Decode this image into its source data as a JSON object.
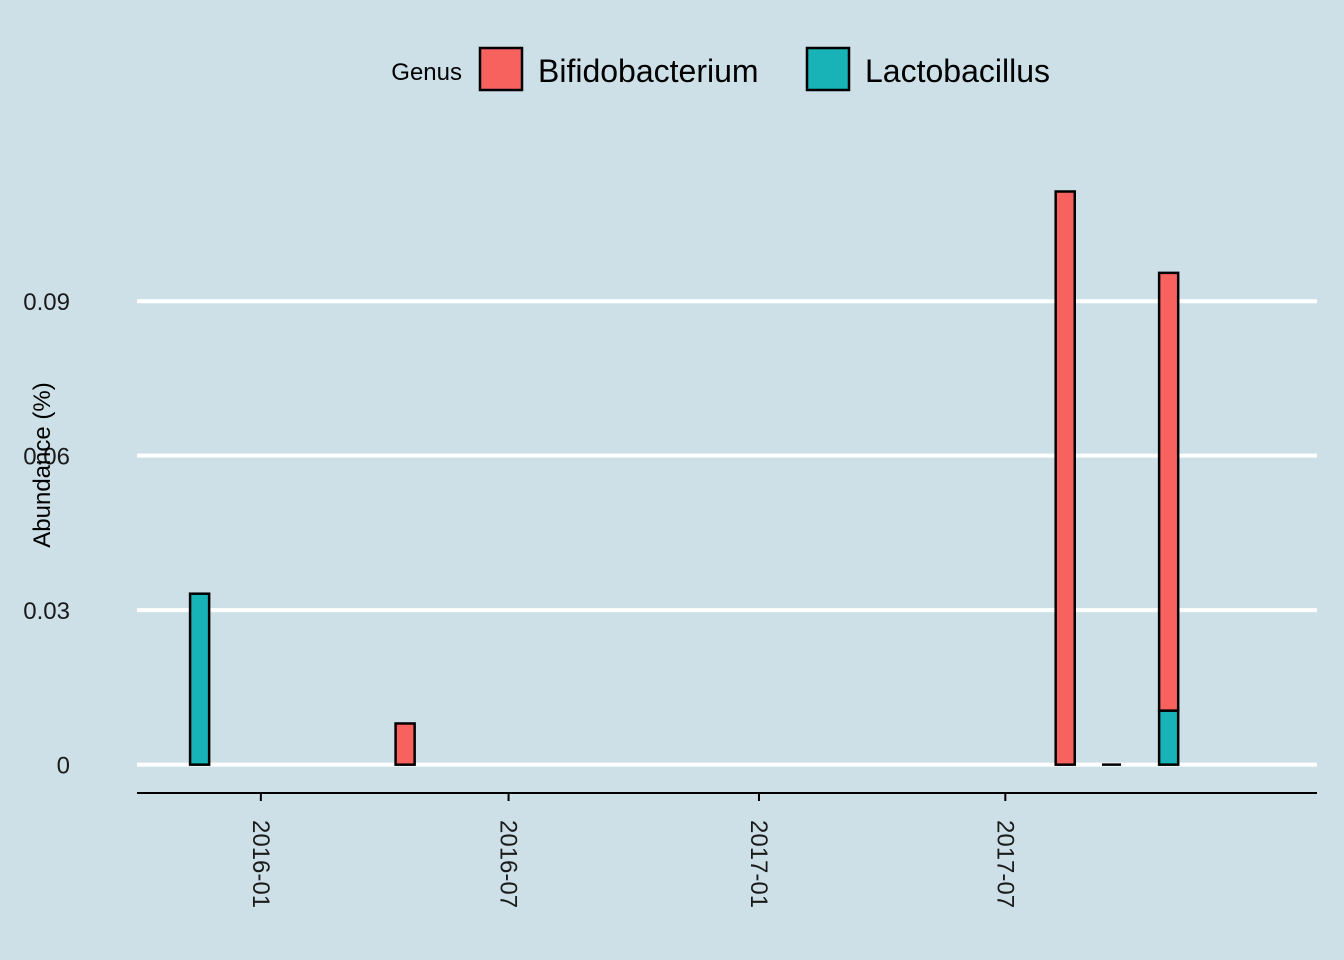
{
  "chart_data": {
    "type": "bar",
    "stacked": true,
    "title": "",
    "xlabel": "",
    "ylabel": "Abundance (%)",
    "legend": {
      "title": "Genus",
      "position": "top"
    },
    "grid": {
      "horizontal_major": true,
      "vertical": false
    },
    "ylim": [
      -0.0055,
      0.1213
    ],
    "yticks": [
      0,
      0.03,
      0.06,
      0.09
    ],
    "ytick_labels": [
      "0",
      "0.03",
      "0.06",
      "0.09"
    ],
    "xlim": [
      "2015-10-02",
      "2018-02-15"
    ],
    "xticks": [
      "2016-01-01",
      "2016-07-01",
      "2017-01-01",
      "2017-07-01"
    ],
    "xtick_labels": [
      "2016-01",
      "2016-07",
      "2017-01",
      "2017-07"
    ],
    "x": [
      "2015-11-17",
      "2016-04-16",
      "2017-08-14",
      "2017-09-17",
      "2017-10-29"
    ],
    "series": [
      {
        "name": "Bifidobacterium",
        "color": "#f8625e",
        "values": [
          0,
          0.008,
          0.1113,
          0,
          0.085
        ]
      },
      {
        "name": "Lactobacillus",
        "color": "#17b3b6",
        "values": [
          0.0332,
          0,
          0,
          0,
          0.0105
        ]
      }
    ],
    "bar_width_days": 14,
    "colors": {
      "background": "#cde0e7",
      "grid": "#ffffff",
      "bar_outline": "#000000"
    }
  }
}
